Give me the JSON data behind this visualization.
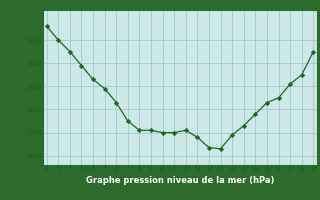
{
  "x": [
    0,
    1,
    2,
    3,
    4,
    5,
    6,
    7,
    8,
    9,
    10,
    11,
    12,
    13,
    14,
    15,
    16,
    17,
    18,
    19,
    20,
    21,
    22,
    23
  ],
  "y": [
    1023.6,
    1023.0,
    1022.5,
    1021.9,
    1021.3,
    1020.9,
    1020.3,
    1019.5,
    1019.1,
    1019.1,
    1019.0,
    1019.0,
    1019.1,
    1018.8,
    1018.35,
    1018.3,
    1018.9,
    1019.3,
    1019.8,
    1020.3,
    1020.5,
    1021.1,
    1021.5,
    1022.5
  ],
  "line_color": "#1a6b1a",
  "marker_color": "#1a6b1a",
  "bg_color": "#cce8e8",
  "plot_bg_color": "#cce8e8",
  "grid_color": "#a8cccc",
  "border_color": "#2d6b2d",
  "xlabel": "Graphe pression niveau de la mer (hPa)",
  "xlabel_color": "#ffffff",
  "xlabel_bg": "#2d6b2d",
  "tick_color": "#1a5c1a",
  "ylim": [
    1017.6,
    1024.3
  ],
  "yticks": [
    1018,
    1019,
    1020,
    1021,
    1022,
    1023
  ],
  "xticks": [
    0,
    1,
    2,
    3,
    4,
    5,
    6,
    7,
    8,
    9,
    10,
    11,
    12,
    13,
    14,
    15,
    16,
    17,
    18,
    19,
    20,
    21,
    22,
    23
  ]
}
